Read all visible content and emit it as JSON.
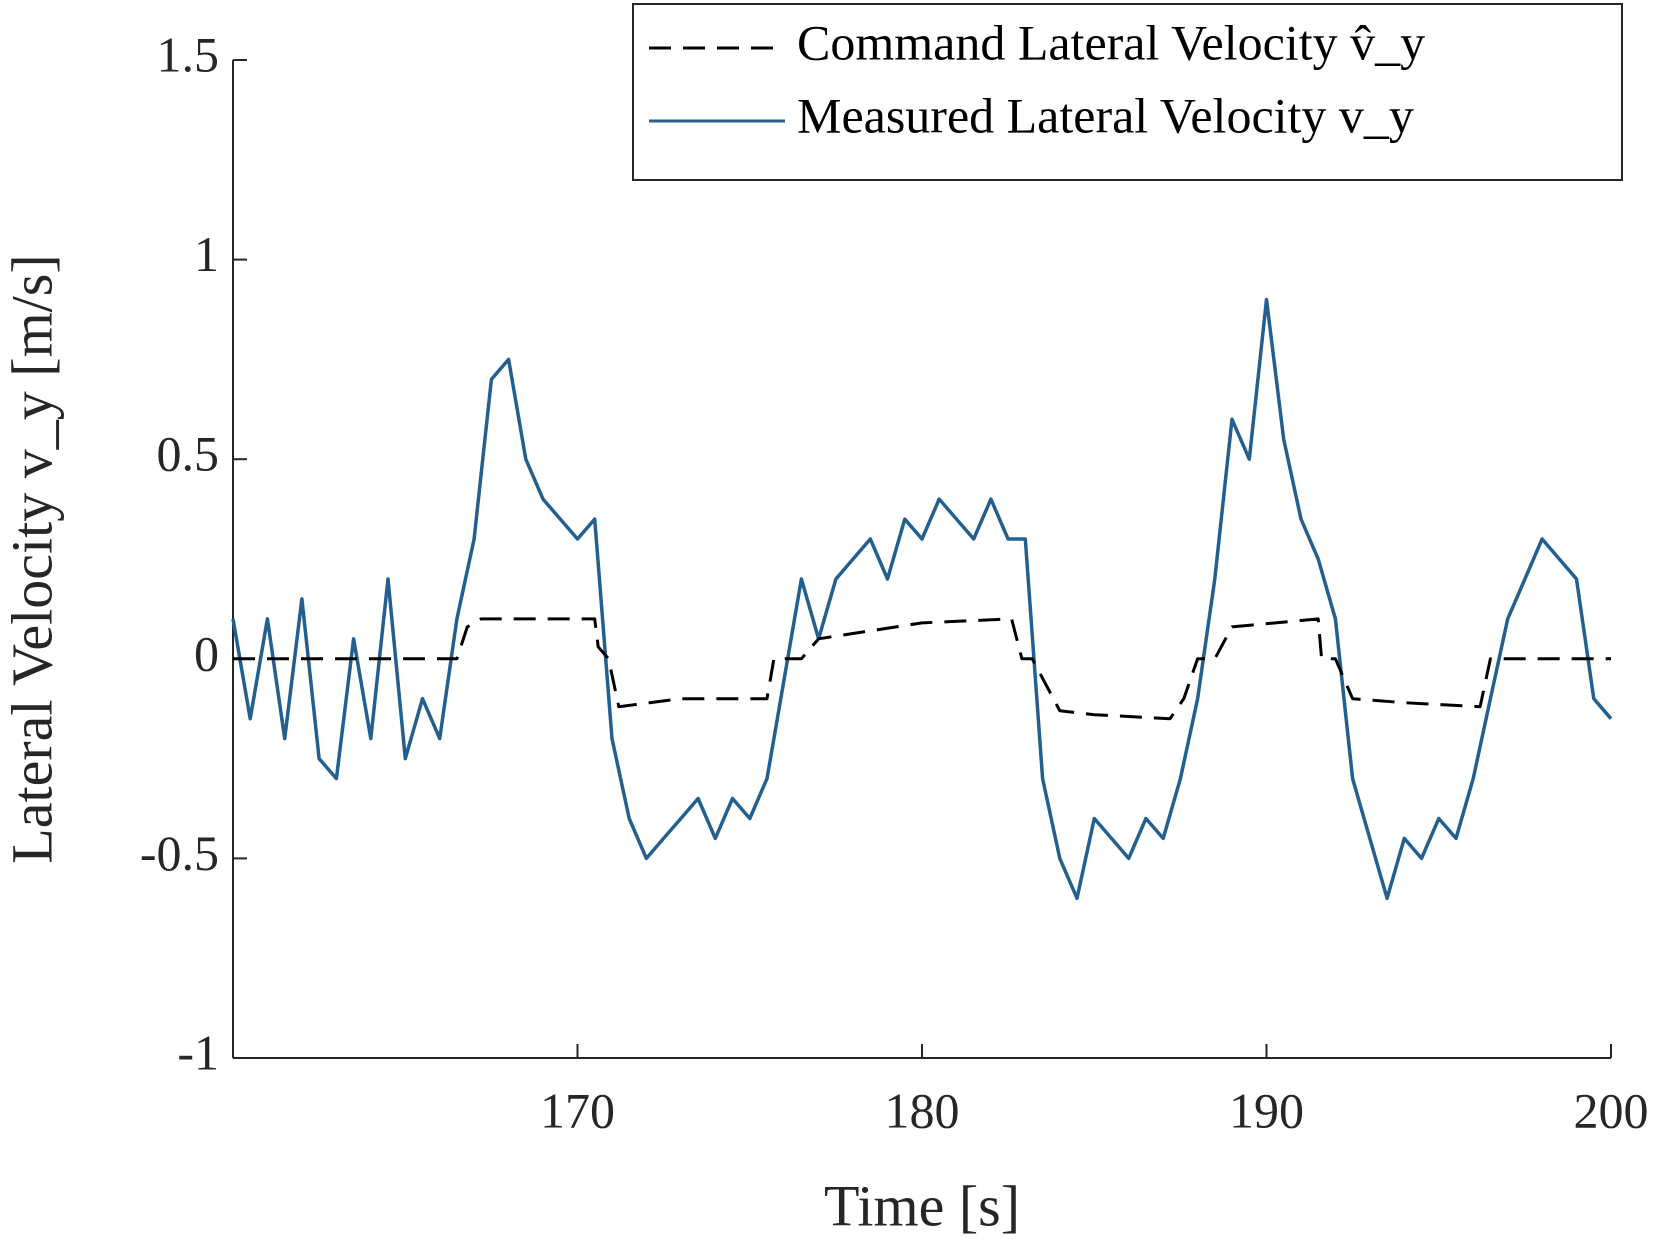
{
  "chart_data": {
    "type": "line",
    "xlabel": "Time [s]",
    "ylabel": "Lateral Velocity v_y [m/s]",
    "xlim": [
      160,
      200
    ],
    "xticks": [
      170,
      180,
      190,
      200
    ],
    "ylim": [
      -1,
      1.5
    ],
    "yticks": [
      -1,
      -0.5,
      0,
      0.5,
      1,
      1.5
    ],
    "legend": "upper right",
    "series": [
      {
        "name": "Command Lateral Velocity v̂_y",
        "color": "#000000",
        "dashed": true,
        "x": [
          160,
          166.5,
          166.8,
          167.2,
          170.5,
          170.6,
          170.9,
          171.2,
          173,
          175.5,
          175.7,
          176.5,
          177,
          180,
          182.6,
          182.9,
          183.2,
          184,
          185,
          187.2,
          187.6,
          188,
          188.5,
          189,
          191.5,
          191.6,
          192,
          192.5,
          194,
          196.2,
          196.5,
          200
        ],
        "values": [
          0,
          0,
          0.08,
          0.1,
          0.1,
          0.03,
          0,
          -0.12,
          -0.1,
          -0.1,
          0,
          0,
          0.05,
          0.09,
          0.1,
          0,
          0,
          -0.13,
          -0.14,
          -0.15,
          -0.1,
          0,
          0,
          0.08,
          0.1,
          0,
          0,
          -0.1,
          -0.11,
          -0.12,
          0,
          0
        ]
      },
      {
        "name": "Measured Lateral Velocity v_y",
        "color": "#23608f",
        "dashed": false,
        "x": [
          160,
          160.5,
          161,
          161.5,
          162,
          162.5,
          163,
          163.5,
          164,
          164.5,
          165,
          165.5,
          166,
          166.5,
          167,
          167.5,
          168,
          168.5,
          169,
          169.5,
          170,
          170.5,
          171,
          171.5,
          172,
          172.5,
          173,
          173.5,
          174,
          174.5,
          175,
          175.5,
          176,
          176.5,
          177,
          177.5,
          178,
          178.5,
          179,
          179.5,
          180,
          180.5,
          181,
          181.5,
          182,
          182.5,
          183,
          183.5,
          184,
          184.5,
          185,
          185.5,
          186,
          186.5,
          187,
          187.5,
          188,
          188.5,
          189,
          189.5,
          190,
          190.5,
          191,
          191.5,
          192,
          192.5,
          193,
          193.5,
          194,
          194.5,
          195,
          195.5,
          196,
          196.5,
          197,
          197.5,
          198,
          198.5,
          199,
          199.5,
          200
        ],
        "values": [
          0.1,
          -0.15,
          0.1,
          -0.2,
          0.15,
          -0.25,
          -0.3,
          0.05,
          -0.2,
          0.2,
          -0.25,
          -0.1,
          -0.2,
          0.1,
          0.3,
          0.7,
          0.75,
          0.5,
          0.4,
          0.35,
          0.3,
          0.35,
          -0.2,
          -0.4,
          -0.5,
          -0.45,
          -0.4,
          -0.35,
          -0.45,
          -0.35,
          -0.4,
          -0.3,
          -0.05,
          0.2,
          0.05,
          0.2,
          0.25,
          0.3,
          0.2,
          0.35,
          0.3,
          0.4,
          0.35,
          0.3,
          0.4,
          0.3,
          0.3,
          -0.3,
          -0.5,
          -0.6,
          -0.4,
          -0.45,
          -0.5,
          -0.4,
          -0.45,
          -0.3,
          -0.1,
          0.2,
          0.6,
          0.5,
          0.9,
          0.55,
          0.35,
          0.25,
          0.1,
          -0.3,
          -0.45,
          -0.6,
          -0.45,
          -0.5,
          -0.4,
          -0.45,
          -0.3,
          -0.1,
          0.1,
          0.2,
          0.3,
          0.25,
          0.2,
          -0.1,
          -0.15
        ]
      }
    ]
  }
}
